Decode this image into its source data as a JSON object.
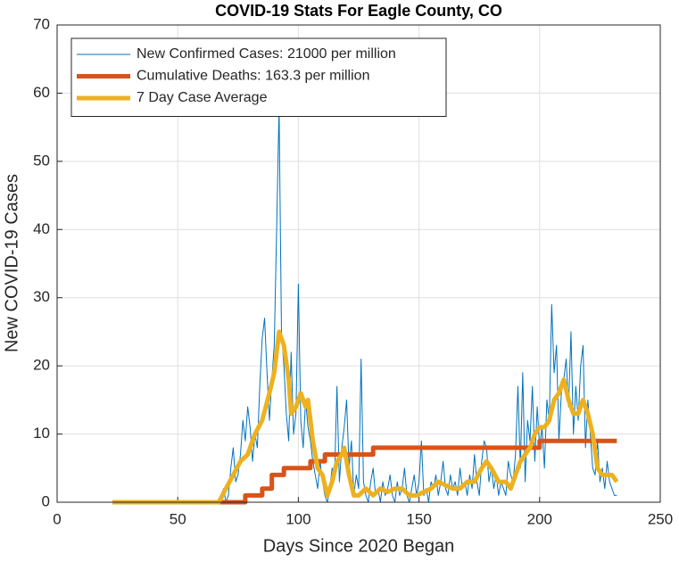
{
  "chart_data": {
    "type": "line",
    "title": "COVID-19 Stats For Eagle County, CO",
    "xlabel": "Days Since 2020 Began",
    "ylabel": "New COVID-19 Cases",
    "xlim": [
      0,
      250
    ],
    "xticks": [
      0,
      50,
      100,
      150,
      200,
      250
    ],
    "ylim": [
      0,
      70
    ],
    "yticks": [
      0,
      10,
      20,
      30,
      40,
      50,
      60,
      70
    ],
    "grid": true,
    "legend": "top-left",
    "series": [
      {
        "name": "New Confirmed Cases: 21000 per million",
        "color": "#0072BD",
        "width": 1,
        "x": [
          23,
          67,
          68,
          69,
          70,
          71,
          72,
          73,
          74,
          75,
          76,
          77,
          78,
          79,
          80,
          81,
          82,
          83,
          84,
          85,
          86,
          87,
          88,
          89,
          90,
          91,
          92,
          93,
          94,
          95,
          96,
          97,
          98,
          99,
          100,
          101,
          102,
          103,
          104,
          105,
          106,
          107,
          108,
          109,
          110,
          111,
          112,
          113,
          114,
          115,
          116,
          117,
          118,
          119,
          120,
          121,
          122,
          123,
          124,
          125,
          126,
          127,
          128,
          129,
          130,
          131,
          132,
          133,
          134,
          135,
          136,
          137,
          138,
          139,
          140,
          141,
          142,
          143,
          144,
          145,
          146,
          147,
          148,
          149,
          150,
          151,
          152,
          153,
          154,
          155,
          156,
          157,
          158,
          159,
          160,
          161,
          162,
          163,
          164,
          165,
          166,
          167,
          168,
          169,
          170,
          171,
          172,
          173,
          174,
          175,
          176,
          177,
          178,
          179,
          180,
          181,
          182,
          183,
          184,
          185,
          186,
          187,
          188,
          189,
          190,
          191,
          192,
          193,
          194,
          195,
          196,
          197,
          198,
          199,
          200,
          201,
          202,
          203,
          204,
          205,
          206,
          207,
          208,
          209,
          210,
          211,
          212,
          213,
          214,
          215,
          216,
          217,
          218,
          219,
          220,
          221,
          222,
          223,
          224,
          225,
          226,
          227,
          228,
          229,
          230,
          231,
          232
        ],
        "values": [
          0,
          0,
          1,
          2,
          0,
          1,
          5,
          8,
          3,
          4,
          7,
          12,
          9,
          14,
          11,
          6,
          10,
          8,
          17,
          24,
          27,
          19,
          12,
          18,
          23,
          40,
          58,
          25,
          20,
          13,
          9,
          22,
          10,
          13,
          32,
          12,
          8,
          15,
          11,
          9,
          6,
          4,
          2,
          6,
          3,
          1,
          0,
          2,
          5,
          4,
          17,
          3,
          8,
          11,
          15,
          5,
          9,
          1,
          4,
          2,
          21,
          3,
          1,
          0,
          3,
          5,
          1,
          2,
          0,
          3,
          1,
          2,
          4,
          1,
          0,
          3,
          1,
          2,
          5,
          1,
          0,
          2,
          4,
          1,
          3,
          9,
          1,
          2,
          0,
          3,
          2,
          4,
          1,
          3,
          6,
          2,
          1,
          4,
          2,
          3,
          1,
          5,
          2,
          3,
          1,
          4,
          2,
          7,
          3,
          1,
          6,
          9,
          8,
          3,
          5,
          2,
          4,
          1,
          3,
          2,
          1,
          6,
          4,
          3,
          7,
          17,
          5,
          19,
          3,
          12,
          9,
          17,
          6,
          14,
          8,
          11,
          5,
          15,
          12,
          29,
          19,
          23,
          9,
          16,
          18,
          21,
          14,
          25,
          10,
          17,
          12,
          20,
          23,
          8,
          15,
          10,
          5,
          4,
          9,
          3,
          5,
          2,
          6,
          3,
          2,
          1,
          1
        ]
      },
      {
        "name": "Cumulative Deaths: 163.3 per million",
        "color": "#D95319",
        "width": 5,
        "x": [
          23,
          78,
          78,
          85,
          85,
          89,
          89,
          94,
          94,
          105,
          105,
          111,
          111,
          131,
          131,
          200,
          200,
          232
        ],
        "values": [
          0,
          0,
          1,
          1,
          2,
          2,
          4,
          4,
          5,
          5,
          6,
          6,
          7,
          7,
          8,
          8,
          9,
          9
        ]
      },
      {
        "name": "7 Day Case Average",
        "color": "#EDB120",
        "width": 5,
        "x": [
          23,
          67,
          70,
          73,
          76,
          79,
          82,
          85,
          88,
          90,
          92,
          94,
          96,
          97,
          99,
          101,
          103,
          104,
          106,
          108,
          110,
          112,
          114,
          116,
          118,
          119,
          121,
          123,
          125,
          128,
          131,
          134,
          137,
          140,
          143,
          146,
          149,
          152,
          155,
          158,
          161,
          164,
          167,
          170,
          173,
          176,
          178,
          180,
          183,
          186,
          188,
          190,
          192,
          194,
          196,
          198,
          200,
          202,
          204,
          206,
          208,
          210,
          212,
          214,
          216,
          218,
          220,
          222,
          224,
          226,
          228,
          230,
          232
        ],
        "values": [
          0,
          0,
          2,
          4,
          6,
          7,
          10,
          12,
          16,
          19,
          25,
          23,
          18,
          13,
          14,
          16,
          14,
          15,
          9,
          5,
          4,
          1,
          3,
          6,
          7,
          8,
          4,
          1,
          1,
          2,
          1,
          2,
          1.5,
          2,
          2,
          1,
          1,
          1.5,
          2,
          3,
          2.5,
          2,
          2,
          3,
          3,
          5,
          6,
          5,
          3,
          3,
          2,
          4,
          6,
          7,
          8,
          10,
          11,
          11,
          12,
          15,
          16,
          18,
          15,
          13,
          13,
          15,
          13,
          10,
          5,
          4,
          4,
          4,
          3
        ]
      }
    ]
  }
}
